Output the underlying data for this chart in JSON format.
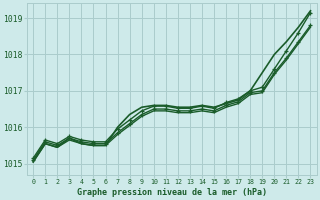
{
  "xlabel": "Graphe pression niveau de la mer (hPa)",
  "bg_color": "#ceeaea",
  "grid_color": "#aacccc",
  "line_color": "#1a5c2a",
  "xlim": [
    -0.5,
    23.5
  ],
  "ylim": [
    1014.7,
    1019.4
  ],
  "yticks": [
    1015,
    1016,
    1017,
    1018,
    1019
  ],
  "xticks": [
    0,
    1,
    2,
    3,
    4,
    5,
    6,
    7,
    8,
    9,
    10,
    11,
    12,
    13,
    14,
    15,
    16,
    17,
    18,
    19,
    20,
    21,
    22,
    23
  ],
  "series": [
    {
      "y": [
        1015.05,
        1015.55,
        1015.45,
        1015.65,
        1015.55,
        1015.5,
        1015.5,
        1015.8,
        1016.05,
        1016.3,
        1016.45,
        1016.45,
        1016.4,
        1016.4,
        1016.45,
        1016.4,
        1016.55,
        1016.65,
        1016.9,
        1016.95,
        1017.45,
        1017.85,
        1018.3,
        1018.75
      ],
      "marker": null,
      "lw": 1.0
    },
    {
      "y": [
        1015.1,
        1015.6,
        1015.5,
        1015.7,
        1015.6,
        1015.55,
        1015.55,
        1015.85,
        1016.1,
        1016.35,
        1016.5,
        1016.5,
        1016.45,
        1016.45,
        1016.5,
        1016.45,
        1016.6,
        1016.7,
        1016.95,
        1017.0,
        1017.5,
        1017.9,
        1018.35,
        1018.8
      ],
      "marker": "+",
      "lw": 1.0
    },
    {
      "y": [
        1015.15,
        1015.65,
        1015.55,
        1015.75,
        1015.65,
        1015.6,
        1015.6,
        1015.95,
        1016.2,
        1016.45,
        1016.58,
        1016.58,
        1016.52,
        1016.52,
        1016.58,
        1016.52,
        1016.68,
        1016.78,
        1017.0,
        1017.1,
        1017.6,
        1018.1,
        1018.6,
        1019.15
      ],
      "marker": "+",
      "lw": 1.0
    },
    {
      "y": [
        1015.05,
        1015.55,
        1015.45,
        1015.7,
        1015.55,
        1015.5,
        1015.5,
        1016.0,
        1016.35,
        1016.55,
        1016.6,
        1016.6,
        1016.55,
        1016.55,
        1016.6,
        1016.55,
        1016.65,
        1016.75,
        1017.0,
        1017.5,
        1018.0,
        1018.35,
        1018.75,
        1019.2
      ],
      "marker": null,
      "lw": 1.2
    }
  ]
}
